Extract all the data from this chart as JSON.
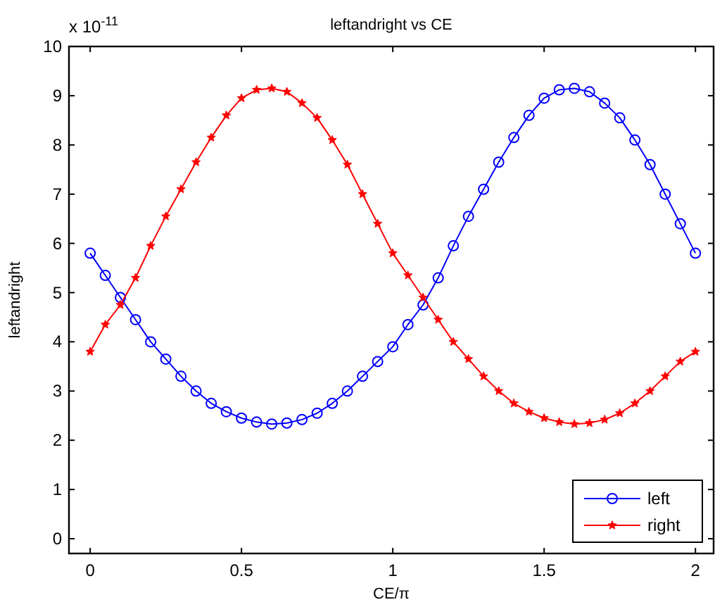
{
  "chart_data": {
    "type": "line",
    "title": "leftandright vs CE",
    "xlabel": "CE/π",
    "ylabel": "leftandright",
    "annotations": [
      "x 10$^{-11}$"
    ],
    "x": [
      0,
      0.05,
      0.1,
      0.15,
      0.2,
      0.25,
      0.3,
      0.35,
      0.4,
      0.45,
      0.5,
      0.55,
      0.6,
      0.65,
      0.7,
      0.75,
      0.8,
      0.85,
      0.9,
      0.95,
      1,
      1.05,
      1.1,
      1.15,
      1.2,
      1.25,
      1.3,
      1.35,
      1.4,
      1.45,
      1.5,
      1.55,
      1.6,
      1.65,
      1.7,
      1.75,
      1.8,
      1.85,
      1.9,
      1.95,
      2
    ],
    "series": [
      {
        "name": "left",
        "color": "#0000ff",
        "marker": "circle",
        "values": [
          5.8,
          5.35,
          4.9,
          4.45,
          4.0,
          3.65,
          3.3,
          3.0,
          2.75,
          2.58,
          2.45,
          2.37,
          2.33,
          2.35,
          2.42,
          2.55,
          2.75,
          3.0,
          3.3,
          3.6,
          3.9,
          4.35,
          4.75,
          5.3,
          5.95,
          6.55,
          7.1,
          7.65,
          8.15,
          8.6,
          8.95,
          9.12,
          9.15,
          9.08,
          8.85,
          8.55,
          8.1,
          7.6,
          7.0,
          6.4,
          5.8
        ]
      },
      {
        "name": "right",
        "color": "#ff0000",
        "marker": "star",
        "values": [
          3.8,
          4.35,
          4.75,
          5.3,
          5.95,
          6.55,
          7.1,
          7.65,
          8.15,
          8.6,
          8.95,
          9.12,
          9.15,
          9.08,
          8.85,
          8.55,
          8.1,
          7.6,
          7.0,
          6.4,
          5.8,
          5.35,
          4.9,
          4.45,
          4.0,
          3.65,
          3.3,
          3.0,
          2.75,
          2.58,
          2.45,
          2.37,
          2.33,
          2.35,
          2.42,
          2.55,
          2.75,
          3.0,
          3.3,
          3.6,
          3.8
        ]
      }
    ],
    "xlim": [
      -0.07,
      2.06
    ],
    "xticks": [
      0,
      0.5,
      1,
      1.5,
      2
    ],
    "ylim": [
      -0.3,
      10
    ],
    "yticks": [
      0,
      1,
      2,
      3,
      4,
      5,
      6,
      7,
      8,
      9,
      10
    ],
    "grid": false,
    "legend": "bottom right"
  }
}
